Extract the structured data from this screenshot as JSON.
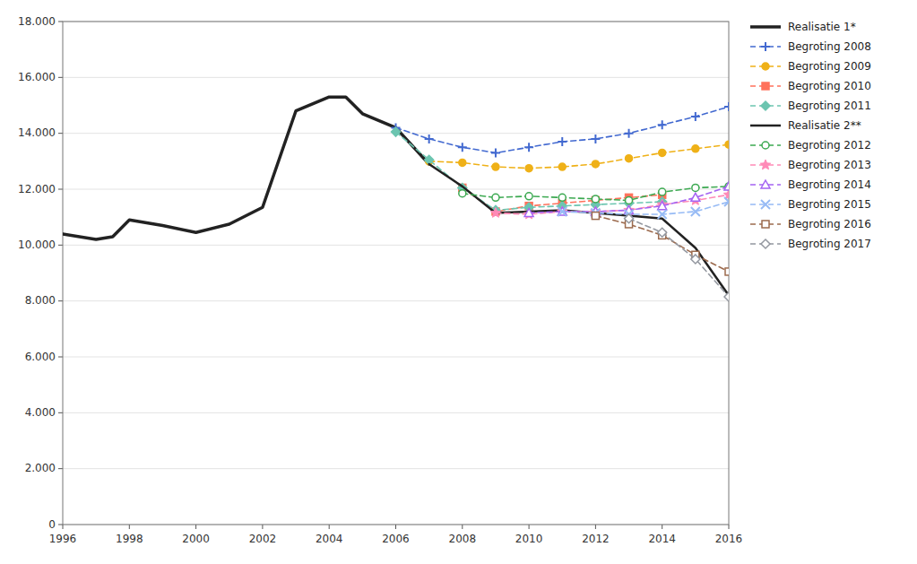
{
  "chart_data": {
    "type": "line",
    "xlim": [
      1996,
      2016
    ],
    "xticks": [
      1996,
      1998,
      2000,
      2002,
      2004,
      2006,
      2008,
      2010,
      2012,
      2014,
      2016
    ],
    "ylim": [
      0,
      18000
    ],
    "yticks": [
      0,
      {
        "value": 2000,
        "label": "2.000"
      },
      {
        "value": 4000,
        "label": "4.000"
      },
      {
        "value": 6000,
        "label": "6.000"
      },
      {
        "value": 8000,
        "label": "8.000"
      },
      {
        "value": 10000,
        "label": "10.000"
      },
      {
        "value": 12000,
        "label": "12.000"
      },
      {
        "value": 14000,
        "label": "14.000"
      },
      {
        "value": 16000,
        "label": "16.000"
      },
      {
        "value": 18000,
        "label": "18.000"
      }
    ],
    "grid": true,
    "legend": "right",
    "series": [
      {
        "name": "Realisatie 1*",
        "color": "#222222",
        "line_style": "solid",
        "marker": "none",
        "x": [
          1996,
          1997,
          1997.5,
          1998,
          1999,
          2000,
          2001,
          2002,
          2003,
          2004,
          2004.5,
          2005,
          2006,
          2007
        ],
        "values": [
          10400,
          10200,
          10300,
          10900,
          10700,
          10450,
          10750,
          11350,
          14800,
          15300,
          15300,
          14700,
          14200,
          12900
        ]
      },
      {
        "name": "Begroting 2008",
        "color": "#4269d0",
        "line_style": "dashed",
        "marker": "plus",
        "x": [
          2006,
          2007,
          2008,
          2009,
          2010,
          2011,
          2012,
          2013,
          2014,
          2015,
          2016
        ],
        "values": [
          14200,
          13800,
          13500,
          13300,
          13500,
          13700,
          13800,
          14000,
          14300,
          14600,
          14950
        ]
      },
      {
        "name": "Begroting 2009",
        "color": "#efb118",
        "line_style": "dashed",
        "marker": "circle",
        "x": [
          2007,
          2008,
          2009,
          2010,
          2011,
          2012,
          2013,
          2014,
          2015,
          2016
        ],
        "values": [
          13000,
          12950,
          12800,
          12750,
          12800,
          12900,
          13100,
          13300,
          13450,
          13600
        ]
      },
      {
        "name": "Begroting 2010",
        "color": "#ff725c",
        "line_style": "dashed",
        "marker": "square",
        "x": [
          2008,
          2009,
          2010,
          2011,
          2012,
          2013,
          2014
        ],
        "values": [
          12050,
          11200,
          11400,
          11500,
          11600,
          11700,
          11800
        ]
      },
      {
        "name": "Begroting 2011",
        "color": "#6cc5b0",
        "line_style": "dashed",
        "marker": "diamond",
        "x": [
          2006,
          2007,
          2008,
          2009,
          2010,
          2011,
          2012,
          2013,
          2014
        ],
        "values": [
          14050,
          13050,
          12050,
          11250,
          11350,
          11400,
          11450,
          11500,
          11550
        ]
      },
      {
        "name": "Realisatie 2**",
        "color": "#222222",
        "line_style": "solid",
        "marker": "none",
        "x": [
          2007,
          2008,
          2009,
          2010,
          2011,
          2012,
          2013,
          2014,
          2015,
          2016
        ],
        "values": [
          12900,
          12100,
          11150,
          11200,
          11250,
          11150,
          11050,
          10950,
          9900,
          8200
        ]
      },
      {
        "name": "Begroting 2012",
        "color": "#3ca951",
        "line_style": "dashed",
        "marker": "circle-open",
        "x": [
          2008,
          2009,
          2010,
          2011,
          2012,
          2013,
          2014,
          2015,
          2016
        ],
        "values": [
          11850,
          11700,
          11750,
          11700,
          11650,
          11600,
          11900,
          12050,
          12100
        ]
      },
      {
        "name": "Begroting 2013",
        "color": "#ff8ab7",
        "line_style": "dashed",
        "marker": "star",
        "x": [
          2009,
          2010,
          2011,
          2012,
          2013,
          2014,
          2015,
          2016
        ],
        "values": [
          11150,
          11100,
          11200,
          11200,
          11250,
          11450,
          11600,
          11800
        ]
      },
      {
        "name": "Begroting 2014",
        "color": "#a463f2",
        "line_style": "dashed",
        "marker": "triangle-open",
        "x": [
          2010,
          2011,
          2012,
          2013,
          2014,
          2015,
          2016
        ],
        "values": [
          11150,
          11200,
          11200,
          11250,
          11400,
          11700,
          12100
        ]
      },
      {
        "name": "Begroting 2015",
        "color": "#97bbf5",
        "line_style": "dashed",
        "marker": "x",
        "x": [
          2011,
          2012,
          2013,
          2014,
          2015,
          2016
        ],
        "values": [
          11200,
          11150,
          11100,
          11100,
          11200,
          11550
        ]
      },
      {
        "name": "Begroting 2016",
        "color": "#9c6b4e",
        "line_style": "dashed",
        "marker": "square-open",
        "x": [
          2012,
          2013,
          2014,
          2015,
          2016
        ],
        "values": [
          11050,
          10750,
          10350,
          9650,
          9050
        ]
      },
      {
        "name": "Begroting 2017",
        "color": "#9498a0",
        "line_style": "dashed",
        "marker": "diamond-open",
        "x": [
          2013,
          2014,
          2015,
          2016
        ],
        "values": [
          10950,
          10450,
          9500,
          8150
        ]
      }
    ]
  }
}
